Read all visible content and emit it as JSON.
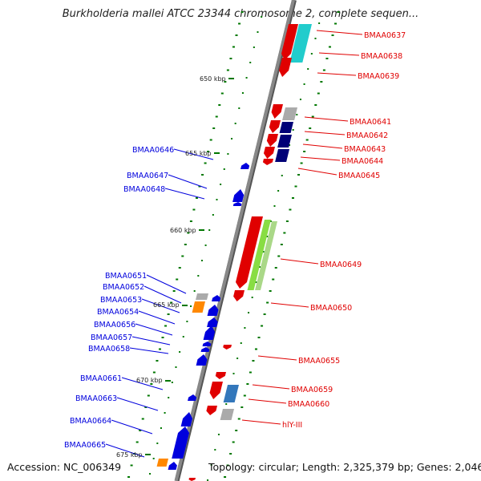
{
  "title": "Burkholderia mallei ATCC 23344 chromosome 2, complete sequen...",
  "accession": "Accession: NC_006349",
  "summary": "Topology: circular; Length: 2,325,379 bp; Genes: 2,046",
  "colors": {
    "forward": "#e00000",
    "reverse": "#0000dd",
    "backbone": "#888888",
    "tick": "#007700",
    "cyan": "#22cccc",
    "green": "#88dd44",
    "orange": "#ff8800",
    "navy": "#000077",
    "grey": "#aaaaaa",
    "steel": "#3377bb"
  },
  "kbp_labels": [
    "650 kbp",
    "655 kbp",
    "660 kbp",
    "665 kbp",
    "670 kbp",
    "675 kbp"
  ],
  "right_labels": [
    "BMAA0637",
    "BMAA0638",
    "BMAA0639",
    "BMAA0641",
    "BMAA0642",
    "BMAA0643",
    "BMAA0644",
    "BMAA0645",
    "BMAA0649",
    "BMAA0650",
    "BMAA0655",
    "BMAA0659",
    "BMAA0660",
    "hlY-III"
  ],
  "left_labels": [
    "BMAA0646",
    "BMAA0647",
    "BMAA0648",
    "BMAA0651",
    "BMAA0652",
    "BMAA0653",
    "BMAA0654",
    "BMAA0656",
    "BMAA0657",
    "BMAA0658",
    "BMAA0661",
    "BMAA0663",
    "BMAA0664",
    "BMAA0665"
  ]
}
